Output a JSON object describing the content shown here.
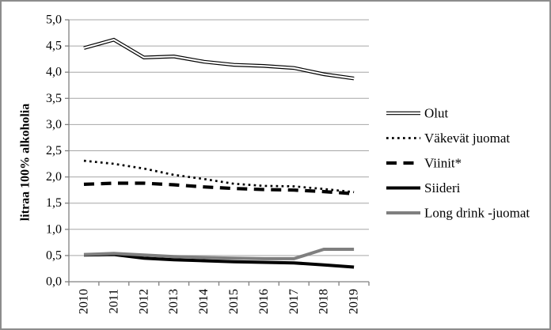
{
  "figure": {
    "border_color": "#8c8c8c",
    "background_color": "#ffffff"
  },
  "chart_data": {
    "type": "line",
    "title": "",
    "xlabel": "",
    "ylabel": "litraa 100% alkoholia",
    "ylim": [
      0.0,
      5.0
    ],
    "ytick_step": 0.5,
    "ytick_labels": [
      "0,0",
      "0,5",
      "1,0",
      "1,5",
      "2,0",
      "2,5",
      "3,0",
      "3,5",
      "4,0",
      "4,5",
      "5,0"
    ],
    "categories": [
      "2010",
      "2011",
      "2012",
      "2013",
      "2014",
      "2015",
      "2016",
      "2017",
      "2018",
      "2019"
    ],
    "grid": "horizontal-only",
    "legend_position": "right",
    "axis_color": "#808080",
    "gridline_color": "#a6a6a6",
    "text_color": "#000000",
    "series": [
      {
        "name": "Olut",
        "line_style": "double-outline",
        "color": "#000000",
        "values": [
          4.46,
          4.62,
          4.28,
          4.3,
          4.2,
          4.14,
          4.12,
          4.08,
          3.96,
          3.88
        ]
      },
      {
        "name": "Väkevät juomat",
        "line_style": "dotted",
        "color": "#000000",
        "values": [
          2.31,
          2.25,
          2.16,
          2.04,
          1.96,
          1.87,
          1.83,
          1.82,
          1.77,
          1.71
        ]
      },
      {
        "name": "Viinit*",
        "line_style": "dashed",
        "color": "#000000",
        "values": [
          1.86,
          1.88,
          1.88,
          1.85,
          1.81,
          1.78,
          1.76,
          1.75,
          1.72,
          1.68
        ]
      },
      {
        "name": "Siideri",
        "line_style": "solid",
        "color": "#000000",
        "values": [
          0.51,
          0.52,
          0.45,
          0.42,
          0.4,
          0.38,
          0.37,
          0.36,
          0.32,
          0.28
        ]
      },
      {
        "name": "Long drink -juomat",
        "line_style": "solid",
        "color": "#7f7f7f",
        "values": [
          0.52,
          0.54,
          0.51,
          0.48,
          0.46,
          0.45,
          0.44,
          0.44,
          0.62,
          0.62
        ]
      }
    ]
  }
}
